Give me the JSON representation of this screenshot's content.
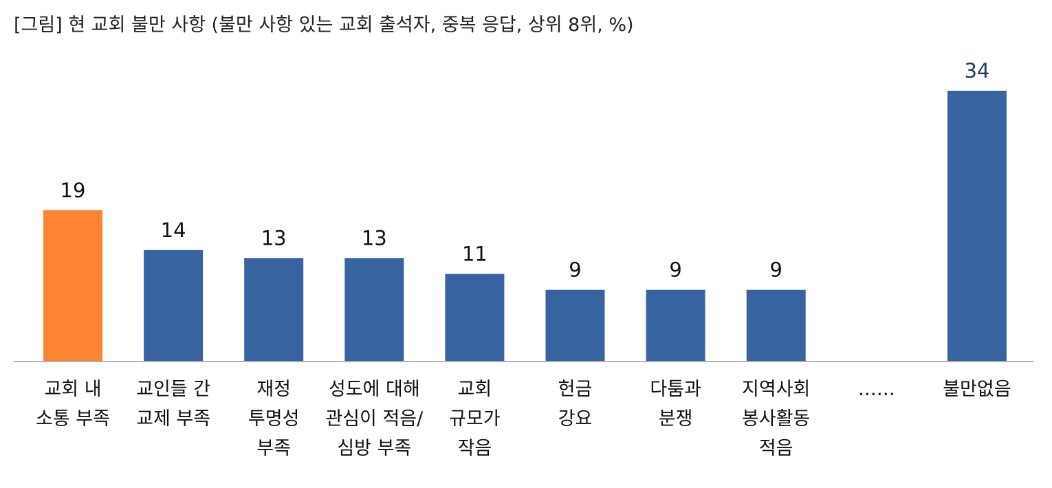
{
  "chart_data": {
    "type": "bar",
    "title": "[그림] 현 교회 불만 사항 (불만 사항 있는 교회 출석자, 중복 응답, 상위 8위, %)",
    "categories": [
      [
        "교회 내",
        "소통 부족"
      ],
      [
        "교인들 간",
        "교제 부족"
      ],
      [
        "재정",
        "투명성",
        "부족"
      ],
      [
        "성도에 대해",
        "관심이 적음/",
        "심방 부족"
      ],
      [
        "교회",
        "규모가",
        "작음"
      ],
      [
        "헌금",
        "강요"
      ],
      [
        "다툼과",
        "분쟁"
      ],
      [
        "지역사회",
        "봉사활동",
        "적음"
      ],
      [
        "……"
      ],
      [
        "불만없음"
      ]
    ],
    "values": [
      19,
      14,
      13,
      13,
      11,
      9,
      9,
      9,
      null,
      34
    ],
    "colors": [
      "#fd8335",
      "#3764a1",
      "#3764a1",
      "#3764a1",
      "#3764a1",
      "#3764a1",
      "#3764a1",
      "#3764a1",
      null,
      "#3764a1"
    ],
    "ylim": [
      0,
      34
    ],
    "xlabel": "",
    "ylabel": "",
    "grid": false,
    "legend": "none",
    "baseline_color": "#b0b0b0"
  }
}
